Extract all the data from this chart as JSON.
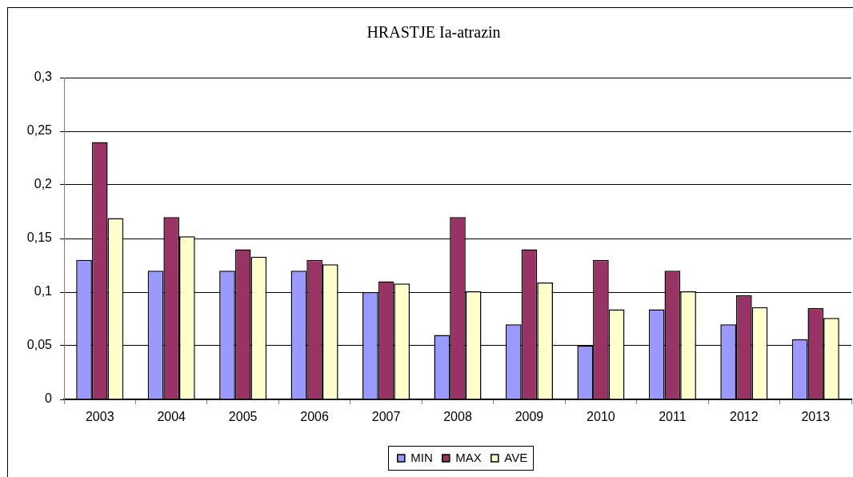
{
  "chart_data": {
    "type": "bar",
    "title": "HRASTJE Ia-atrazin",
    "categories": [
      "2003",
      "2004",
      "2005",
      "2006",
      "2007",
      "2008",
      "2009",
      "2010",
      "2011",
      "2012",
      "2013"
    ],
    "series": [
      {
        "name": "MIN",
        "color": "#9999ff",
        "values": [
          0.13,
          0.12,
          0.12,
          0.12,
          0.1,
          0.06,
          0.07,
          0.05,
          0.084,
          0.07,
          0.056
        ]
      },
      {
        "name": "MAX",
        "color": "#993366",
        "values": [
          0.24,
          0.17,
          0.14,
          0.13,
          0.11,
          0.17,
          0.14,
          0.13,
          0.12,
          0.097,
          0.085
        ]
      },
      {
        "name": "AVE",
        "color": "#ffffcc",
        "values": [
          0.169,
          0.152,
          0.133,
          0.126,
          0.108,
          0.101,
          0.109,
          0.084,
          0.101,
          0.086,
          0.076
        ]
      }
    ],
    "ylim": [
      0,
      0.3
    ],
    "yticks": [
      0,
      {
        "value": 0.05,
        "label": "0,05"
      },
      {
        "value": 0.1,
        "label": "0,1"
      },
      {
        "value": 0.15,
        "label": "0,15"
      },
      {
        "value": 0.2,
        "label": "0,2"
      },
      {
        "value": 0.25,
        "label": "0,25"
      },
      {
        "value": 0.3,
        "label": "0,3"
      }
    ],
    "grid": "y",
    "legend": "bottom"
  }
}
